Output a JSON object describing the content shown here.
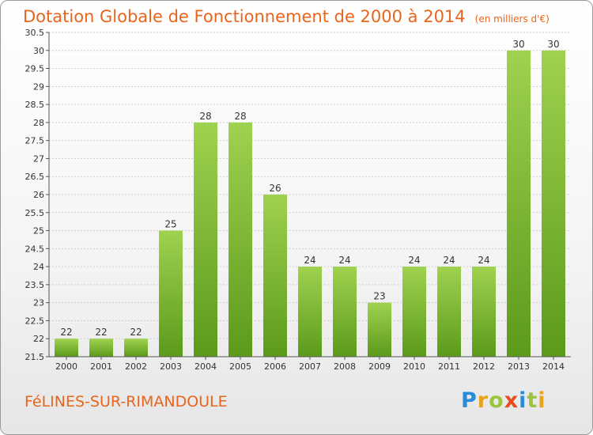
{
  "header": {
    "title": "Dotation Globale de Fonctionnement de 2000 à 2014",
    "unit": "(en milliers d'€)"
  },
  "footer": {
    "commune": "FéLINES-SUR-RIMANDOULE",
    "brand_letters": [
      "P",
      "r",
      "o",
      "x",
      "i",
      "t",
      "i"
    ],
    "brand_colors": [
      "#2a8bd6",
      "#e8a31b",
      "#9bc53d",
      "#e94e1b",
      "#2a8bd6",
      "#9bc53d",
      "#e8a31b"
    ]
  },
  "chart_data": {
    "type": "bar",
    "title": "Dotation Globale de Fonctionnement de 2000 à 2014",
    "subtitle": "(en milliers d'€)",
    "categories": [
      "2000",
      "2001",
      "2002",
      "2003",
      "2004",
      "2005",
      "2006",
      "2007",
      "2008",
      "2009",
      "2010",
      "2011",
      "2012",
      "2013",
      "2014"
    ],
    "values": [
      22,
      22,
      22,
      25,
      28,
      28,
      26,
      24,
      24,
      23,
      24,
      24,
      24,
      30,
      30
    ],
    "value_labels": [
      "22",
      "22",
      "22",
      "25",
      "28",
      "28",
      "26",
      "24",
      "24",
      "23",
      "24",
      "24",
      "24",
      "30",
      "30"
    ],
    "ylim": [
      21.5,
      30.5
    ],
    "yticks": [
      21.5,
      22,
      22.5,
      23,
      23.5,
      24,
      24.5,
      25,
      25.5,
      26,
      26.5,
      27,
      27.5,
      28,
      28.5,
      29,
      29.5,
      30,
      30.5
    ],
    "ytick_labels": [
      "21.5",
      "22",
      "22.5",
      "23",
      "23.5",
      "24",
      "24.5",
      "25",
      "25.5",
      "26",
      "26.5",
      "27",
      "27.5",
      "28",
      "28.5",
      "29",
      "29.5",
      "30",
      "30.5"
    ],
    "grid": true,
    "bar_color": "#8cc63f",
    "bar_color_dark": "#5c9a1b"
  }
}
